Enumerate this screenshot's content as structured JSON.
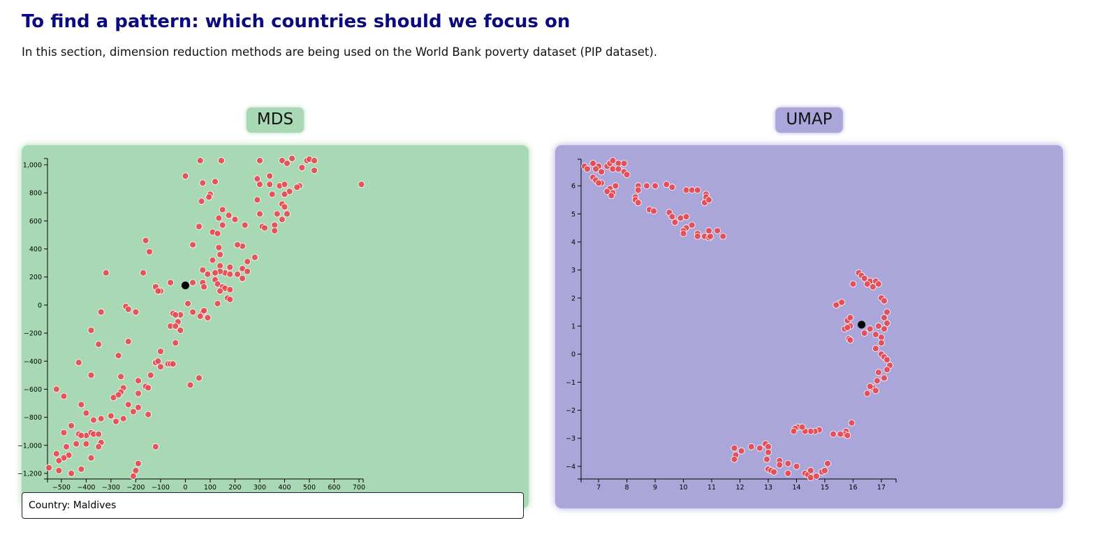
{
  "header": {
    "title": "To find a pattern: which countries should we focus on",
    "subtitle": "In this section, dimension reduction methods are being used on the World Bank poverty dataset (PIP dataset)."
  },
  "info_box": {
    "text": "Country: Maldives"
  },
  "chart_data": [
    {
      "type": "scatter",
      "title": "MDS",
      "background": "#a8d9b4",
      "xlim": [
        -556,
        717
      ],
      "ylim": [
        -1240,
        1045
      ],
      "xticks": [
        {
          "value": -500,
          "label": "−500"
        },
        {
          "value": -400,
          "label": "−400"
        },
        {
          "value": -300,
          "label": "−300"
        },
        {
          "value": -200,
          "label": "−200"
        },
        {
          "value": -100,
          "label": "−100"
        },
        0,
        100,
        200,
        300,
        400,
        500,
        600,
        700
      ],
      "yticks": [
        {
          "value": -1200,
          "label": "−1,200"
        },
        {
          "value": -1000,
          "label": "−1,000"
        },
        {
          "value": -800,
          "label": "−800"
        },
        {
          "value": -600,
          "label": "−600"
        },
        {
          "value": -400,
          "label": "−400"
        },
        {
          "value": -200,
          "label": "−200"
        },
        0,
        200,
        400,
        600,
        800,
        {
          "value": 1000,
          "label": "1,000"
        }
      ],
      "series": [
        {
          "color": "#e8474f",
          "x": [
            60,
            145,
            300,
            390,
            430,
            410,
            490,
            500,
            520,
            520,
            470,
            0,
            340,
            290,
            70,
            120,
            300,
            340,
            380,
            400,
            460,
            450,
            420,
            100,
            95,
            350,
            400,
            65,
            290,
            390,
            400,
            150,
            175,
            300,
            370,
            410,
            135,
            200,
            390,
            360,
            240,
            150,
            55,
            310,
            320,
            360,
            110,
            130,
            -160,
            230,
            210,
            -145,
            135,
            30,
            140,
            280,
            110,
            250,
            180,
            140,
            230,
            70,
            250,
            160,
            140,
            180,
            210,
            90,
            120,
            -320,
            -170,
            230,
            120,
            70,
            130,
            -60,
            30,
            -120,
            75,
            150,
            160,
            180,
            -100,
            -110,
            140,
            170,
            180,
            -340,
            -240,
            -230,
            -200,
            10,
            130,
            70,
            75,
            30,
            -20,
            -50,
            -40,
            60,
            90,
            -30,
            -60,
            -40,
            -20,
            -380,
            -350,
            -230,
            -40,
            -100,
            -270,
            -120,
            -110,
            -70,
            -60,
            -50,
            -100,
            -140,
            -430,
            -380,
            -260,
            -190,
            -160,
            -150,
            -250,
            -190,
            -260,
            -270,
            -520,
            -290,
            -230,
            -490,
            -420,
            -190,
            -210,
            -150,
            -400,
            -300,
            -250,
            -280,
            -340,
            -370,
            -460,
            -490,
            -430,
            -400,
            -380,
            -370,
            -420,
            -350,
            -340,
            -400,
            -440,
            -480,
            -350,
            -120,
            -520,
            -470,
            -490,
            -380,
            -510,
            -420,
            -190,
            -550,
            -510,
            -460,
            -200,
            -210,
            710,
            20,
            55
          ],
          "y": [
            1030,
            1030,
            1030,
            1030,
            1045,
            1010,
            1030,
            1040,
            1030,
            960,
            980,
            920,
            920,
            900,
            870,
            880,
            860,
            860,
            850,
            860,
            850,
            840,
            810,
            790,
            770,
            790,
            790,
            740,
            750,
            720,
            700,
            680,
            640,
            650,
            650,
            650,
            620,
            610,
            610,
            570,
            570,
            570,
            560,
            560,
            550,
            530,
            520,
            510,
            460,
            420,
            430,
            380,
            410,
            430,
            360,
            340,
            320,
            310,
            270,
            280,
            260,
            250,
            240,
            230,
            240,
            220,
            220,
            220,
            230,
            230,
            230,
            190,
            180,
            160,
            150,
            160,
            160,
            130,
            130,
            130,
            120,
            110,
            100,
            100,
            100,
            50,
            40,
            -50,
            -10,
            -30,
            -50,
            10,
            10,
            -50,
            -40,
            -50,
            -70,
            -60,
            -70,
            -80,
            -90,
            -120,
            -150,
            -150,
            -180,
            -180,
            -280,
            -260,
            -270,
            -330,
            -360,
            -410,
            -400,
            -420,
            -420,
            -420,
            -440,
            -500,
            -410,
            -500,
            -510,
            -540,
            -580,
            -590,
            -590,
            -630,
            -620,
            -640,
            -600,
            -660,
            -710,
            -650,
            -710,
            -730,
            -760,
            -780,
            -770,
            -790,
            -810,
            -830,
            -810,
            -820,
            -860,
            -910,
            -920,
            -930,
            -910,
            -920,
            -930,
            -920,
            -980,
            -990,
            -990,
            -1010,
            -1010,
            -1010,
            -1060,
            -1070,
            -1090,
            -1090,
            -1110,
            -1170,
            -1130,
            -1160,
            -1180,
            -1200,
            -1180,
            -1220,
            860,
            -570,
            -520
          ]
        },
        {
          "color": "#000000",
          "x": [
            0
          ],
          "y": [
            140
          ]
        }
      ]
    },
    {
      "type": "scatter",
      "title": "UMAP",
      "background": "#aba6d9",
      "xlim": [
        6.38,
        17.52
      ],
      "ylim": [
        -4.45,
        6.95
      ],
      "xticks": [
        7,
        8,
        9,
        10,
        11,
        12,
        13,
        14,
        15,
        16,
        17
      ],
      "yticks": [
        {
          "value": -4,
          "label": "−4"
        },
        {
          "value": -3,
          "label": "−3"
        },
        {
          "value": -2,
          "label": "−2"
        },
        {
          "value": -1,
          "label": "−1"
        },
        0,
        1,
        2,
        3,
        4,
        5,
        6
      ],
      "series": [
        {
          "color": "#e8474f",
          "x": [
            6.5,
            6.6,
            6.8,
            7.0,
            6.9,
            7.1,
            7.3,
            7.4,
            7.5,
            7.7,
            7.9,
            7.5,
            7.7,
            7.9,
            8.0,
            6.8,
            6.9,
            7.1,
            7.0,
            7.6,
            7.4,
            7.3,
            7.5,
            7.45,
            8.4,
            8.7,
            9.0,
            9.4,
            9.6,
            8.4,
            8.3,
            8.3,
            8.4,
            8.8,
            8.95,
            9.5,
            9.6,
            9.7,
            9.9,
            10.1,
            10.1,
            10.3,
            10.0,
            10.0,
            10.5,
            10.5,
            10.75,
            10.9,
            10.95,
            11.2,
            11.4,
            10.9,
            10.1,
            10.3,
            10.5,
            10.8,
            10.8,
            10.75,
            10.9,
            16.2,
            16.3,
            16.4,
            16.6,
            16.8,
            16.9,
            16.5,
            16.7,
            16.0,
            17.0,
            17.1,
            17.2,
            17.1,
            17.2,
            17.1,
            16.9,
            16.8,
            17.0,
            17.0,
            16.8,
            17.0,
            17.1,
            17.2,
            17.3,
            17.2,
            17.1,
            16.9,
            16.85,
            16.7,
            16.8,
            16.5,
            16.6,
            16.6,
            16.4,
            15.8,
            15.9,
            15.9,
            15.7,
            15.85,
            15.9,
            15.5,
            15.6,
            15.4,
            15.8,
            15.95,
            15.75,
            15.7,
            15.8,
            15.55,
            15.3,
            14.8,
            14.65,
            14.5,
            14.3,
            14.05,
            13.95,
            14.2,
            13.9,
            11.8,
            11.85,
            11.8,
            12.05,
            12.4,
            12.7,
            12.9,
            13.0,
            13.0,
            12.95,
            13.4,
            13.4,
            13.7,
            14.0,
            13.0,
            13.1,
            13.2,
            13.7,
            14.3,
            14.4,
            14.5,
            14.5,
            14.7,
            14.9,
            15.0,
            15.1
          ],
          "y": [
            6.7,
            6.6,
            6.8,
            6.7,
            6.6,
            6.5,
            6.7,
            6.8,
            6.9,
            6.8,
            6.8,
            6.6,
            6.6,
            6.5,
            6.4,
            6.3,
            6.2,
            6.1,
            6.1,
            6.0,
            5.9,
            5.8,
            5.75,
            5.65,
            6.0,
            6.0,
            6.0,
            6.05,
            5.95,
            5.85,
            5.6,
            5.5,
            5.4,
            5.15,
            5.1,
            5.05,
            4.9,
            4.7,
            4.85,
            4.9,
            4.5,
            4.6,
            4.4,
            4.3,
            4.3,
            4.2,
            4.2,
            4.15,
            4.2,
            4.4,
            4.2,
            4.4,
            5.85,
            5.85,
            5.85,
            5.7,
            5.6,
            5.4,
            5.5,
            2.9,
            2.8,
            2.7,
            2.6,
            2.6,
            2.5,
            2.5,
            2.4,
            2.5,
            2.0,
            1.9,
            1.5,
            1.3,
            1.1,
            0.9,
            1.0,
            0.7,
            0.6,
            0.4,
            0.2,
            0.0,
            -0.1,
            -0.2,
            -0.4,
            -0.55,
            -0.85,
            -0.65,
            -0.95,
            -1.2,
            -1.3,
            -1.4,
            -1.15,
            0.9,
            0.75,
            1.2,
            1.3,
            1.0,
            0.9,
            0.55,
            0.5,
            1.8,
            1.85,
            1.75,
            0.95,
            -2.45,
            -2.75,
            -2.85,
            -2.9,
            -2.85,
            -2.85,
            -2.7,
            -2.75,
            -2.75,
            -2.75,
            -2.6,
            -2.65,
            -2.6,
            -2.75,
            -3.35,
            -3.6,
            -3.75,
            -3.45,
            -3.3,
            -3.35,
            -3.2,
            -3.3,
            -3.5,
            -3.75,
            -3.8,
            -3.95,
            -3.9,
            -4.0,
            -4.1,
            -4.15,
            -4.2,
            -4.25,
            -4.25,
            -4.3,
            -4.15,
            -4.4,
            -4.35,
            -4.2,
            -4.15,
            -3.9
          ]
        },
        {
          "color": "#000000",
          "x": [
            16.3
          ],
          "y": [
            1.05
          ]
        }
      ]
    }
  ]
}
